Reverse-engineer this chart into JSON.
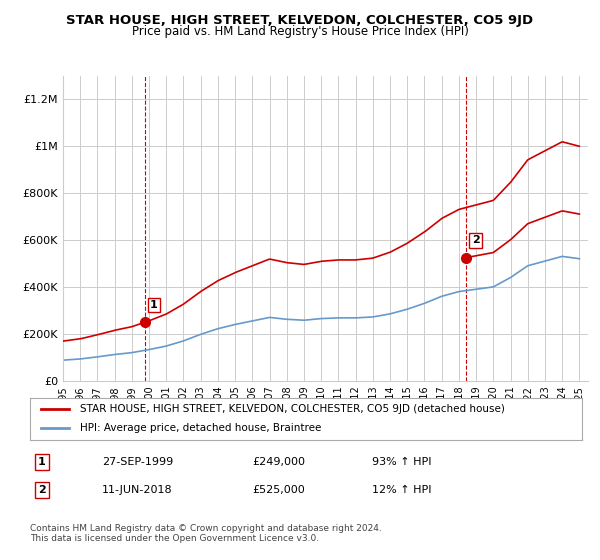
{
  "title": "STAR HOUSE, HIGH STREET, KELVEDON, COLCHESTER, CO5 9JD",
  "subtitle": "Price paid vs. HM Land Registry's House Price Index (HPI)",
  "xlabel": "",
  "ylabel": "",
  "ylim": [
    0,
    1300000
  ],
  "xlim_start": 1995.0,
  "xlim_end": 2025.5,
  "sale1_date": 1999.74,
  "sale1_price": 249000,
  "sale1_label": "1",
  "sale2_date": 2018.44,
  "sale2_price": 525000,
  "sale2_label": "2",
  "red_color": "#cc0000",
  "blue_color": "#6699cc",
  "vline_color": "#cc0000",
  "grid_color": "#cccccc",
  "background_color": "#ffffff",
  "legend_line1": "STAR HOUSE, HIGH STREET, KELVEDON, COLCHESTER, CO5 9JD (detached house)",
  "legend_line2": "HPI: Average price, detached house, Braintree",
  "table_row1_num": "1",
  "table_row1_date": "27-SEP-1999",
  "table_row1_price": "£249,000",
  "table_row1_hpi": "93% ↑ HPI",
  "table_row2_num": "2",
  "table_row2_date": "11-JUN-2018",
  "table_row2_price": "£525,000",
  "table_row2_hpi": "12% ↑ HPI",
  "footer": "Contains HM Land Registry data © Crown copyright and database right 2024.\nThis data is licensed under the Open Government Licence v3.0.",
  "yticks": [
    0,
    200000,
    400000,
    600000,
    800000,
    1000000,
    1200000
  ],
  "ytick_labels": [
    "£0",
    "£200K",
    "£400K",
    "£600K",
    "£800K",
    "£1M",
    "£1.2M"
  ]
}
